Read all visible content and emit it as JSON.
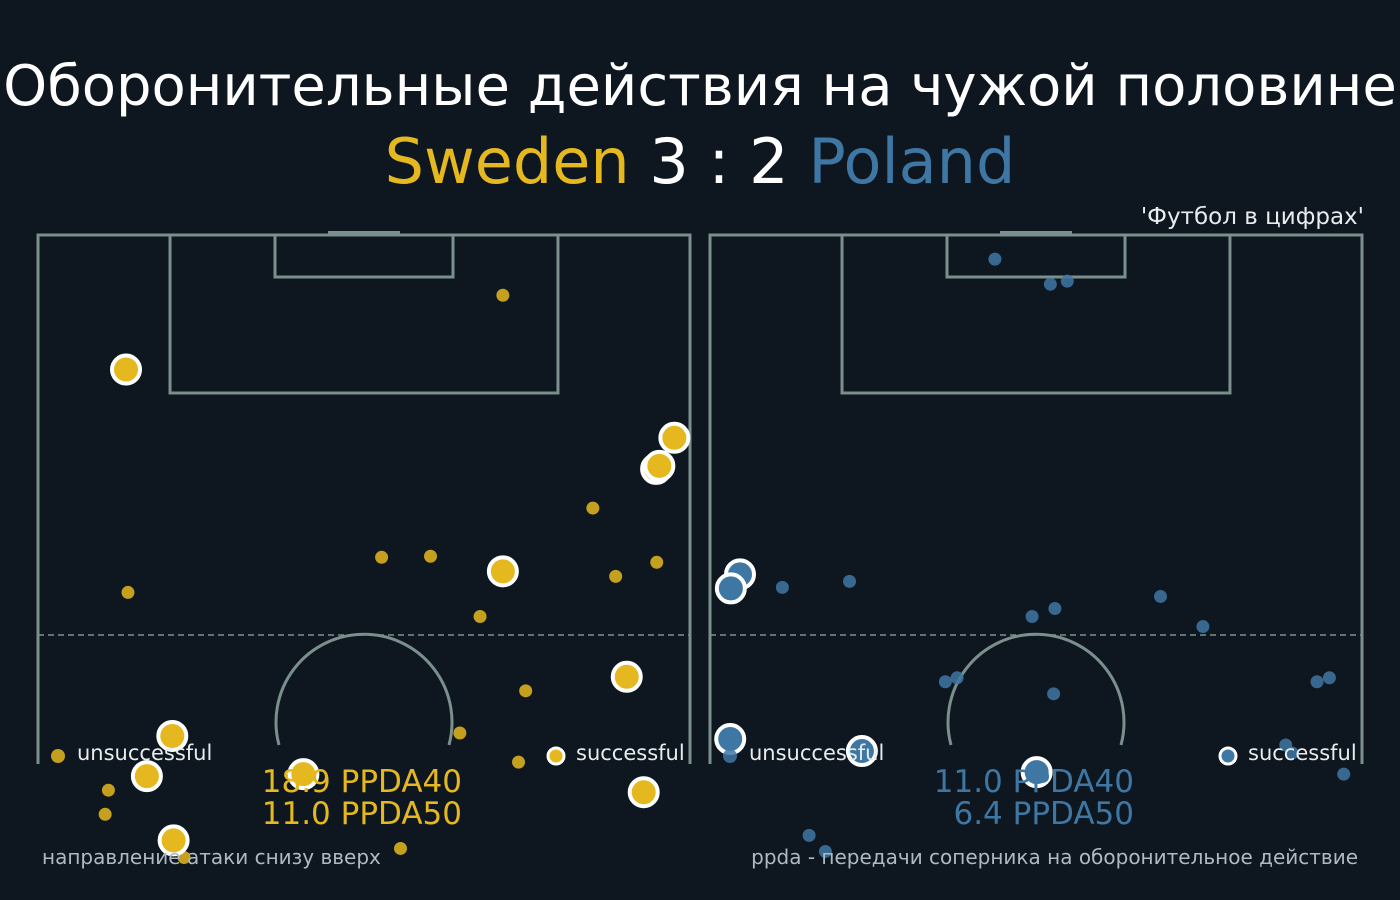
{
  "title": "Оборонительные действия на чужой половине",
  "match": {
    "home": "Sweden",
    "score": "3 : 2",
    "away": "Poland"
  },
  "credit": "'Футбол в цифрах'",
  "colors": {
    "home": "#e5b81f",
    "away": "#3f77a4",
    "pitch_lines": "#7b908c",
    "background": "#0e1720"
  },
  "legend": {
    "unsuccessful": "unsuccessful",
    "successful": "successful"
  },
  "footnotes": {
    "left": "направление атаки снизу вверх",
    "right": "ppda - передачи соперника на оборонительное действие"
  },
  "chart_data": [
    {
      "type": "scatter",
      "team": "Sweden",
      "x_range": [
        0,
        100
      ],
      "y_range": [
        50,
        100
      ],
      "ppda": [
        "18.9 PPDA40",
        "11.0 PPDA50"
      ],
      "unsuccessful": [
        {
          "x": 71.3,
          "y": 94.0
        },
        {
          "x": 85.1,
          "y": 72.8
        },
        {
          "x": 88.6,
          "y": 66.0
        },
        {
          "x": 94.9,
          "y": 67.4
        },
        {
          "x": 13.8,
          "y": 64.4
        },
        {
          "x": 52.7,
          "y": 67.9
        },
        {
          "x": 60.2,
          "y": 68.0
        },
        {
          "x": 67.8,
          "y": 62.0
        },
        {
          "x": 74.8,
          "y": 54.6
        },
        {
          "x": 64.7,
          "y": 50.4
        },
        {
          "x": 73.7,
          "y": 47.5
        },
        {
          "x": 10.8,
          "y": 44.7
        },
        {
          "x": 10.3,
          "y": 42.3
        },
        {
          "x": 55.6,
          "y": 38.9
        },
        {
          "x": 22.4,
          "y": 38.0
        }
      ],
      "successful": [
        {
          "x": 13.5,
          "y": 86.6
        },
        {
          "x": 97.6,
          "y": 79.8
        },
        {
          "x": 94.8,
          "y": 76.7
        },
        {
          "x": 95.3,
          "y": 77.0
        },
        {
          "x": 71.3,
          "y": 66.5
        },
        {
          "x": 90.3,
          "y": 56.0
        },
        {
          "x": 20.6,
          "y": 50.1
        },
        {
          "x": 16.7,
          "y": 46.1
        },
        {
          "x": 40.7,
          "y": 46.3
        },
        {
          "x": 92.9,
          "y": 44.5
        },
        {
          "x": 20.8,
          "y": 39.7
        }
      ]
    },
    {
      "type": "scatter",
      "team": "Poland",
      "x_range": [
        0,
        100
      ],
      "y_range": [
        50,
        100
      ],
      "ppda": [
        "11.0 PPDA40",
        "6.4 PPDA50"
      ],
      "unsuccessful": [
        {
          "x": 43.7,
          "y": 97.6
        },
        {
          "x": 52.2,
          "y": 95.1
        },
        {
          "x": 54.8,
          "y": 95.4
        },
        {
          "x": 11.1,
          "y": 64.9
        },
        {
          "x": 21.4,
          "y": 65.5
        },
        {
          "x": 69.1,
          "y": 64.0
        },
        {
          "x": 49.4,
          "y": 62.0
        },
        {
          "x": 52.9,
          "y": 62.8
        },
        {
          "x": 75.6,
          "y": 61.0
        },
        {
          "x": 37.9,
          "y": 55.9
        },
        {
          "x": 36.1,
          "y": 55.5
        },
        {
          "x": 52.7,
          "y": 54.3
        },
        {
          "x": 93.1,
          "y": 55.5
        },
        {
          "x": 95.0,
          "y": 55.9
        },
        {
          "x": 88.3,
          "y": 49.2
        },
        {
          "x": 89.3,
          "y": 48.4
        },
        {
          "x": 97.2,
          "y": 46.3
        },
        {
          "x": 15.2,
          "y": 40.2
        },
        {
          "x": 17.7,
          "y": 38.6
        }
      ],
      "successful": [
        {
          "x": 4.6,
          "y": 66.2
        },
        {
          "x": 3.2,
          "y": 64.8
        },
        {
          "x": 3.1,
          "y": 49.8
        },
        {
          "x": 23.3,
          "y": 48.6
        },
        {
          "x": 50.1,
          "y": 46.5
        }
      ]
    }
  ]
}
